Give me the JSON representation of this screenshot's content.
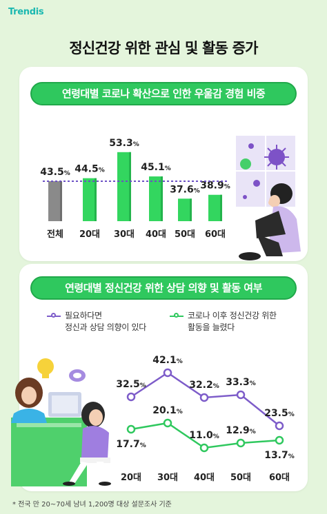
{
  "brand": "Trendis",
  "title": "정신건강 위한 관심 및 활동 증가",
  "section1": {
    "pill": "연령대별 코로나 확산으로 인한 우울감 경험 비중"
  },
  "section2": {
    "pill": "연령대별 정신건강 위한 상담 의향 및 활동 여부",
    "legend": [
      {
        "line1": "필요하다면",
        "line2": "정신과 상담 의향이 있다",
        "color": "#7d5cc9"
      },
      {
        "line1": "코로나 이후 정신건강 위한",
        "line2": "활동을 늘렸다",
        "color": "#2fc85e"
      }
    ]
  },
  "colors": {
    "bar_total": "#8a8a8a",
    "bar_age": "#33d65f",
    "avg_line": "#6b4fc4",
    "purple": "#7d5cc9",
    "green": "#2fc85e"
  },
  "chart_data": [
    {
      "type": "bar",
      "title": "연령대별 코로나 확산으로 인한 우울감 경험 비중",
      "categories": [
        "전체",
        "20대",
        "30대",
        "40대",
        "50대",
        "60대"
      ],
      "values": [
        43.5,
        44.5,
        53.3,
        45.1,
        37.6,
        38.9
      ],
      "value_labels": [
        "43.5",
        "44.5",
        "53.3",
        "45.1",
        "37.6",
        "38.9"
      ],
      "unit": "%",
      "reference_line": 43.5
    },
    {
      "type": "line",
      "title": "연령대별 정신건강 위한 상담 의향 및 활동 여부",
      "categories": [
        "20대",
        "30대",
        "40대",
        "50대",
        "60대"
      ],
      "unit": "%",
      "series": [
        {
          "name": "필요하다면 정신과 상담 의향이 있다",
          "values": [
            32.5,
            42.1,
            32.2,
            33.3,
            23.5
          ],
          "labels": [
            "32.5",
            "42.1",
            "32.2",
            "33.3",
            "23.5"
          ]
        },
        {
          "name": "코로나 이후 정신건강 위한 활동을 늘렸다",
          "values": [
            17.7,
            20.1,
            11.0,
            12.9,
            13.7
          ],
          "labels": [
            "17.7",
            "20.1",
            "11.0",
            "12.9",
            "13.7"
          ]
        }
      ]
    }
  ],
  "footnote": "* 전국 만 20~70세 남녀 1,200명 대상 설문조사 기준"
}
